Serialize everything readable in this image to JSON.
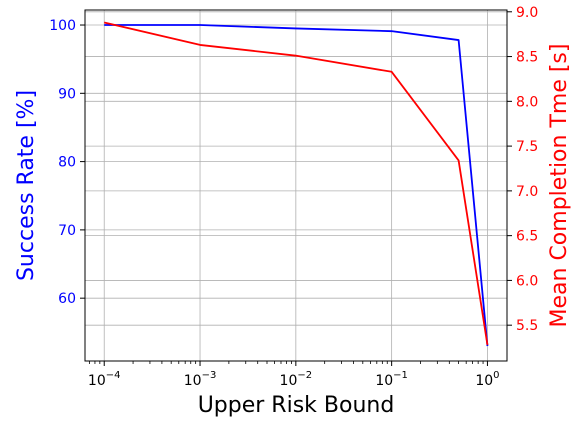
{
  "chart_data": {
    "type": "line",
    "xlabel": "Upper Risk Bound",
    "x_scale": "log",
    "x": [
      0.0001,
      0.001,
      0.01,
      0.1,
      0.5,
      1.0
    ],
    "x_ticks": [
      {
        "value": 0.0001,
        "base": "10",
        "exp": "−4"
      },
      {
        "value": 0.001,
        "base": "10",
        "exp": "−3"
      },
      {
        "value": 0.01,
        "base": "10",
        "exp": "−2"
      },
      {
        "value": 0.1,
        "base": "10",
        "exp": "−1"
      },
      {
        "value": 1,
        "base": "10",
        "exp": "0"
      }
    ],
    "xlim": [
      6.3e-05,
      1.6
    ],
    "grid": true,
    "series": [
      {
        "axis": "left",
        "color": "#0000ff",
        "values": [
          100.0,
          100.0,
          99.5,
          99.1,
          97.8,
          53.0
        ]
      },
      {
        "axis": "right",
        "color": "#ff0000",
        "values": [
          8.88,
          8.63,
          8.51,
          8.33,
          7.34,
          5.28
        ]
      }
    ],
    "y_left": {
      "label": "Success Rate [%]",
      "color": "#0000ff",
      "ylim": [
        50.8,
        102.2
      ],
      "ticks": [
        60,
        70,
        80,
        90,
        100
      ],
      "tick_labels": [
        "60",
        "70",
        "80",
        "90",
        "100"
      ]
    },
    "y_right": {
      "label": "Mean Completion Tme [s]",
      "color": "#ff0000",
      "ylim": [
        5.1,
        9.02
      ],
      "ticks": [
        5.5,
        6.0,
        6.5,
        7.0,
        7.5,
        8.0,
        8.5,
        9.0
      ],
      "tick_labels": [
        "5.5",
        "6.0",
        "6.5",
        "7.0",
        "7.5",
        "8.0",
        "8.5",
        "9.0"
      ]
    }
  }
}
